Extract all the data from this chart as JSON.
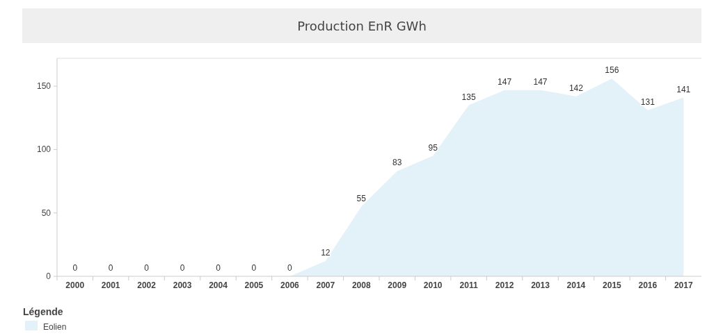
{
  "chart_data": {
    "type": "area",
    "title": "Production EnR GWh",
    "categories": [
      "2000",
      "2001",
      "2002",
      "2003",
      "2004",
      "2005",
      "2006",
      "2007",
      "2008",
      "2009",
      "2010",
      "2011",
      "2012",
      "2013",
      "2014",
      "2015",
      "2016",
      "2017"
    ],
    "series": [
      {
        "name": "Eolien",
        "color": "#e3f1f9",
        "values": [
          0,
          0,
          0,
          0,
          0,
          0,
          0,
          12,
          55,
          83,
          95,
          135,
          147,
          147,
          142,
          156,
          131,
          141
        ]
      }
    ],
    "ylim": [
      0,
      172
    ],
    "yticks": [
      0,
      50,
      100,
      150
    ],
    "grid": false,
    "legend": "bottom left",
    "legend_title": "Légende",
    "data_labels": true
  }
}
